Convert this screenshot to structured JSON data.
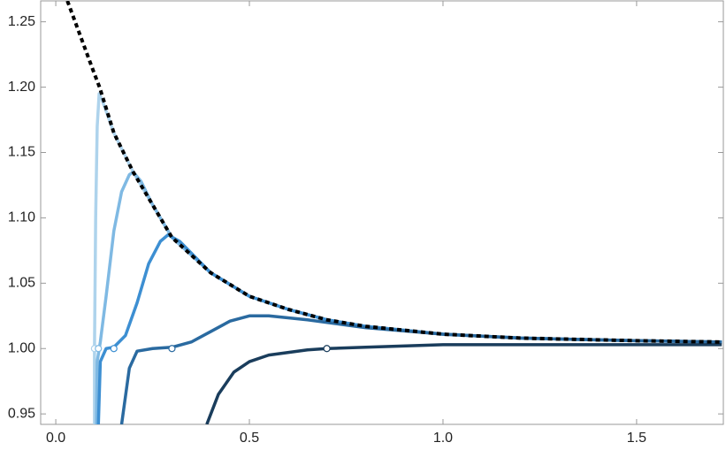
{
  "chart_data": {
    "type": "line",
    "xlim": [
      -0.039,
      1.724
    ],
    "ylim": [
      0.942,
      1.266
    ],
    "xticks": [
      {
        "value": 0,
        "label": "0.0"
      },
      0.5,
      {
        "value": 1,
        "label": "1.0"
      },
      1.5
    ],
    "yticks": [
      0.95,
      {
        "value": 1,
        "label": "1.00"
      },
      1.05,
      {
        "value": 1.1,
        "label": "1.10"
      },
      1.15,
      {
        "value": 1.2,
        "label": "1.20"
      },
      1.25
    ],
    "series": [
      {
        "color": "#aed3ec",
        "style": "solid",
        "x": [
          0.1,
          0.1,
          0.103,
          0.107,
          0.112,
          0.12,
          0.15,
          0.2,
          0.3,
          0.4,
          0.5,
          0.6,
          0.7,
          0.8,
          1.0,
          1.2,
          1.5,
          1.72
        ],
        "values": [
          0.942,
          1.0,
          1.1,
          1.17,
          1.195,
          1.19,
          1.165,
          1.135,
          1.085,
          1.058,
          1.04,
          1.03,
          1.022,
          1.017,
          1.011,
          1.008,
          1.006,
          1.005
        ],
        "marker_x": 0.1,
        "marker_y": 1.0
      },
      {
        "color": "#7fb9e3",
        "style": "solid",
        "x": [
          0.105,
          0.107,
          0.115,
          0.13,
          0.15,
          0.17,
          0.19,
          0.2,
          0.22,
          0.25,
          0.3,
          0.4,
          0.5,
          0.6,
          0.7,
          0.8,
          1.0,
          1.2,
          1.5,
          1.72
        ],
        "values": [
          0.942,
          0.99,
          1.005,
          1.04,
          1.09,
          1.12,
          1.133,
          1.135,
          1.128,
          1.11,
          1.085,
          1.058,
          1.04,
          1.03,
          1.022,
          1.017,
          1.011,
          1.008,
          1.006,
          1.005
        ],
        "marker_x": 0.11,
        "marker_y": 1.0
      },
      {
        "color": "#3d8fd2",
        "style": "solid",
        "x": [
          0.11,
          0.115,
          0.13,
          0.15,
          0.18,
          0.21,
          0.24,
          0.27,
          0.29,
          0.32,
          0.4,
          0.5,
          0.6,
          0.7,
          0.8,
          1.0,
          1.2,
          1.5,
          1.72
        ],
        "values": [
          0.942,
          0.99,
          1.0,
          1.001,
          1.01,
          1.035,
          1.065,
          1.082,
          1.087,
          1.082,
          1.058,
          1.04,
          1.03,
          1.022,
          1.017,
          1.011,
          1.008,
          1.006,
          1.005
        ],
        "marker_x": 0.15,
        "marker_y": 1.0
      },
      {
        "color": "#2a6aa0",
        "style": "solid",
        "x": [
          0.17,
          0.19,
          0.21,
          0.25,
          0.3,
          0.35,
          0.4,
          0.45,
          0.5,
          0.55,
          0.65,
          0.8,
          1.0,
          1.2,
          1.5,
          1.72
        ],
        "values": [
          0.942,
          0.985,
          0.998,
          1.0,
          1.001,
          1.005,
          1.013,
          1.021,
          1.025,
          1.025,
          1.022,
          1.016,
          1.011,
          1.008,
          1.006,
          1.005
        ],
        "marker_x": 0.3,
        "marker_y": 1.0
      },
      {
        "color": "#1a3d5c",
        "style": "solid",
        "x": [
          0.39,
          0.42,
          0.46,
          0.5,
          0.55,
          0.65,
          0.7,
          0.8,
          1.0,
          1.2,
          1.5,
          1.72
        ],
        "values": [
          0.942,
          0.965,
          0.982,
          0.99,
          0.995,
          0.999,
          1.0,
          1.001,
          1.003,
          1.003,
          1.003,
          1.003
        ],
        "marker_x": 0.7,
        "marker_y": 1.0
      },
      {
        "color": "#000000",
        "style": "dashed",
        "x": [
          0.03,
          0.05,
          0.075,
          0.1,
          0.113,
          0.15,
          0.2,
          0.3,
          0.4,
          0.5,
          0.6,
          0.7,
          0.8,
          1.0,
          1.2,
          1.5,
          1.72
        ],
        "values": [
          1.266,
          1.25,
          1.23,
          1.21,
          1.2,
          1.165,
          1.135,
          1.085,
          1.058,
          1.04,
          1.03,
          1.022,
          1.017,
          1.011,
          1.008,
          1.006,
          1.005
        ]
      }
    ]
  }
}
